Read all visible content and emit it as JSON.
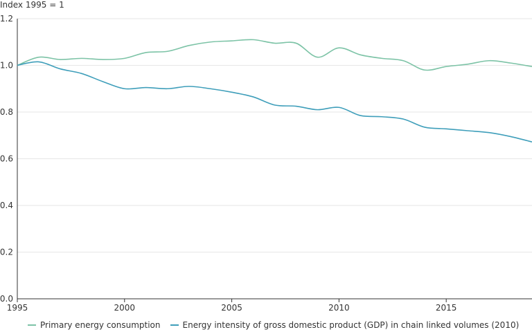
{
  "chart_data": {
    "type": "line",
    "ylabel": "Index 1995 = 1",
    "xlabel": "",
    "title": "",
    "xlim": [
      1995,
      2019
    ],
    "ylim": [
      0,
      1.2
    ],
    "xticks": [
      "1995",
      "2000",
      "2005",
      "2010",
      "2015"
    ],
    "xtick_values": [
      1995,
      2000,
      2005,
      2010,
      2015
    ],
    "yticks": [
      "0.0",
      "0.2",
      "0.4",
      "0.6",
      "0.8",
      "1.0",
      "1.2"
    ],
    "ytick_values": [
      0,
      0.2,
      0.4,
      0.6,
      0.8,
      1.0,
      1.2
    ],
    "grid": "horizontal",
    "legend_position": "bottom",
    "x": [
      1995,
      1996,
      1997,
      1998,
      1999,
      2000,
      2001,
      2002,
      2003,
      2004,
      2005,
      2006,
      2007,
      2008,
      2009,
      2010,
      2011,
      2012,
      2013,
      2014,
      2015,
      2016,
      2017,
      2018,
      2019
    ],
    "series": [
      {
        "name": "Primary energy consumption",
        "color": "#7cc3a6",
        "values": [
          1.0,
          1.035,
          1.025,
          1.03,
          1.025,
          1.03,
          1.055,
          1.06,
          1.085,
          1.1,
          1.105,
          1.11,
          1.095,
          1.095,
          1.035,
          1.075,
          1.045,
          1.03,
          1.02,
          0.98,
          0.995,
          1.005,
          1.02,
          1.01,
          0.995
        ]
      },
      {
        "name": "Energy intensity of gross domestic product (GDP) in chain linked volumes (2010)",
        "color": "#3e9eba",
        "values": [
          1.0,
          1.015,
          0.985,
          0.965,
          0.93,
          0.9,
          0.905,
          0.9,
          0.91,
          0.9,
          0.885,
          0.865,
          0.83,
          0.825,
          0.81,
          0.82,
          0.785,
          0.78,
          0.77,
          0.735,
          0.728,
          0.72,
          0.712,
          0.695,
          0.672
        ]
      }
    ]
  }
}
